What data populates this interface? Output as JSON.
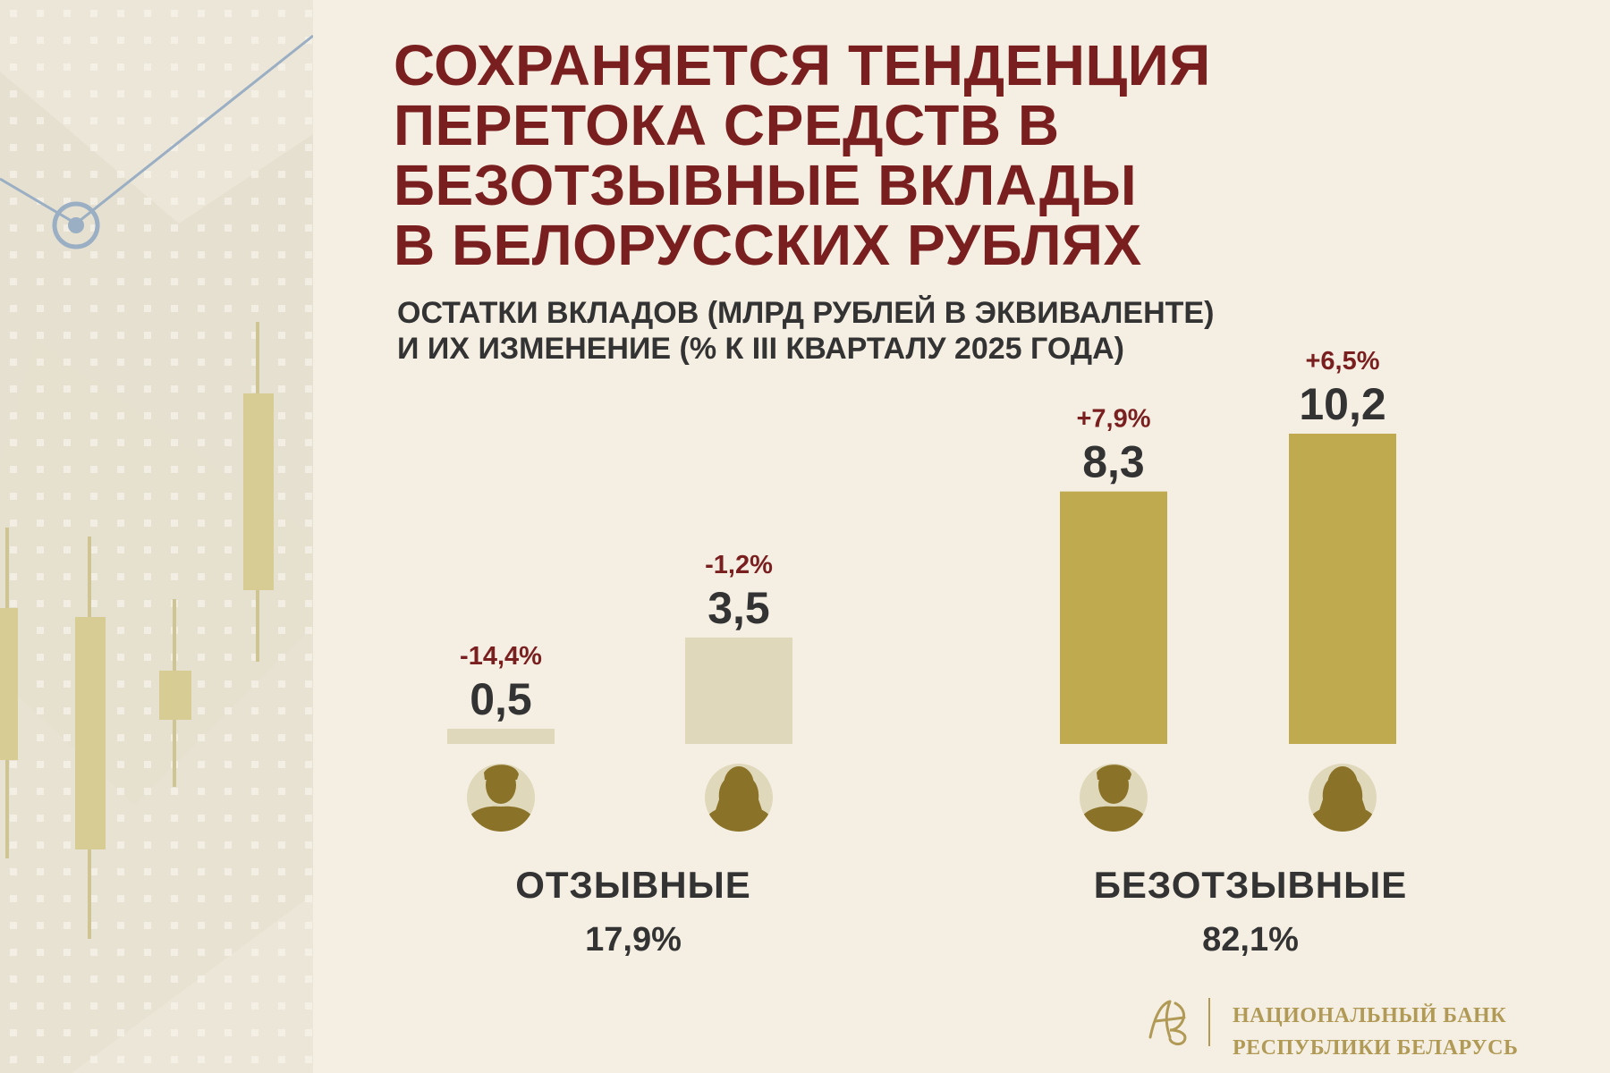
{
  "title_lines": [
    "СОХРАНЯЕТСЯ ТЕНДЕНЦИЯ",
    "ПЕРЕТОКА СРЕДСТВ В",
    "БЕЗОТЗЫВНЫЕ ВКЛАДЫ",
    "В БЕЛОРУССКИХ РУБЛЯХ"
  ],
  "subtitle_lines": [
    "ОСТАТКИ ВКЛАДОВ (МЛРД РУБЛЕЙ В ЭКВИВАЛЕНТЕ)",
    "И ИХ ИЗМЕНЕНИЕ (% К III КВАРТАЛУ 2025 ГОДА)"
  ],
  "colors": {
    "title": "#7a1f1f",
    "change_label": "#7a1f1f",
    "text": "#333333",
    "bar_revocable": "#e0d8bb",
    "bar_irrevocable": "#bfaa4f",
    "person_fill": "#8a7328",
    "person_bg": "#e0d8bb"
  },
  "chart_data": {
    "type": "bar",
    "groups": [
      {
        "name": "ОТЗЫВНЫЕ",
        "share": "17,9%"
      },
      {
        "name": "БЕЗОТЗЫВНЫЕ",
        "share": "82,1%"
      }
    ],
    "bars": [
      {
        "group": 0,
        "icon": "man-icon",
        "value": 0.5,
        "value_label": "0,5",
        "change": "-14,4%"
      },
      {
        "group": 0,
        "icon": "woman-icon",
        "value": 3.5,
        "value_label": "3,5",
        "change": "-1,2%"
      },
      {
        "group": 1,
        "icon": "man-icon",
        "value": 8.3,
        "value_label": "8,3",
        "change": "+7,9%"
      },
      {
        "group": 1,
        "icon": "woman-icon",
        "value": 10.2,
        "value_label": "10,2",
        "change": "+6,5%"
      }
    ],
    "ylim": [
      0,
      10.2
    ]
  },
  "footer": {
    "logo_icon": "nbrb-monogram-icon",
    "lines": [
      "НАЦИОНАЛЬНЫЙ БАНК",
      "РЕСПУБЛИКИ БЕЛАРУСЬ"
    ]
  }
}
